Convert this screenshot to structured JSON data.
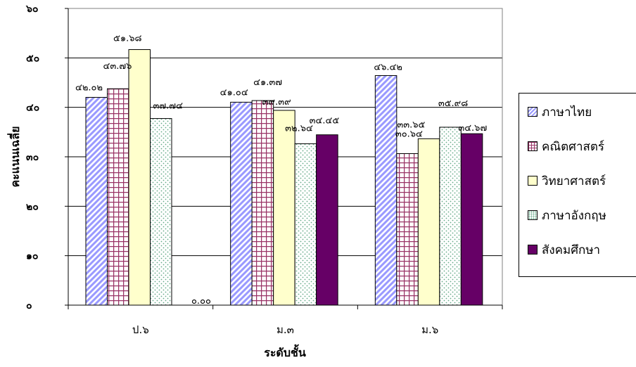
{
  "chart_data": {
    "type": "bar",
    "xlabel": "ระดับชั้น",
    "ylabel": "คะแนนเฉลี่ย",
    "ylim": [
      0,
      60
    ],
    "y_ticks": [
      0,
      10,
      20,
      30,
      40,
      50,
      60
    ],
    "y_tick_labels": [
      "๐",
      "๑๐",
      "๒๐",
      "๓๐",
      "๔๐",
      "๕๐",
      "๖๐"
    ],
    "categories": [
      "ป.๖",
      "ม.๓",
      "ม.๖"
    ],
    "grid": true,
    "legend_position": "right",
    "series": [
      {
        "name": "ภาษาไทย",
        "values": [
          42.02,
          41.04,
          46.42
        ],
        "labels": [
          "๔๒.๐๒",
          "๔๑.๐๔",
          "๔๖.๔๒"
        ],
        "color": "#9999ff",
        "pattern": "diagonal"
      },
      {
        "name": "คณิตศาสตร์",
        "values": [
          43.76,
          41.37,
          30.64
        ],
        "labels": [
          "๔๓.๗๖",
          "๔๑.๓๗",
          "๓๐.๖๔"
        ],
        "color": "#993366",
        "pattern": "grid"
      },
      {
        "name": "วิทยาศาสตร์",
        "values": [
          51.68,
          39.39,
          33.65
        ],
        "labels": [
          "๕๑.๖๘",
          "๓๙.๓๙",
          "๓๓.๖๕"
        ],
        "color": "#ffffcc",
        "pattern": "solid"
      },
      {
        "name": "ภาษาอังกฤษ",
        "values": [
          37.74,
          32.64,
          35.98
        ],
        "labels": [
          "๓๗.๗๔",
          "๓๒.๖๔",
          "๓๕.๙๘"
        ],
        "color": "#99ccbb",
        "pattern": "dots"
      },
      {
        "name": "สังคมศึกษา",
        "values": [
          0.0,
          34.45,
          34.67
        ],
        "labels": [
          "๐.๐๐",
          "๓๔.๔๕",
          "๓๔.๖๗"
        ],
        "color": "#660066",
        "pattern": "solid"
      }
    ]
  }
}
